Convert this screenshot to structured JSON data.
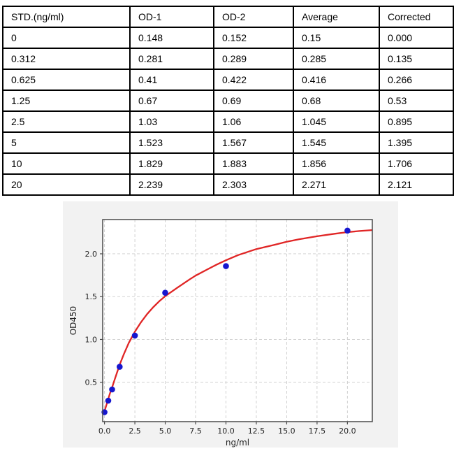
{
  "table": {
    "headers": [
      "STD.(ng/ml)",
      "OD-1",
      "OD-2",
      "Average",
      "Corrected"
    ],
    "rows": [
      [
        "0",
        "0.148",
        "0.152",
        "0.15",
        "0.000"
      ],
      [
        "0.312",
        "0.281",
        "0.289",
        "0.285",
        "0.135"
      ],
      [
        "0.625",
        "0.41",
        "0.422",
        "0.416",
        "0.266"
      ],
      [
        "1.25",
        "0.67",
        "0.69",
        "0.68",
        "0.53"
      ],
      [
        "2.5",
        "1.03",
        "1.06",
        "1.045",
        "0.895"
      ],
      [
        "5",
        "1.523",
        "1.567",
        "1.545",
        "1.395"
      ],
      [
        "10",
        "1.829",
        "1.883",
        "1.856",
        "1.706"
      ],
      [
        "20",
        "2.239",
        "2.303",
        "2.271",
        "2.121"
      ]
    ]
  },
  "chart_data": {
    "type": "scatter",
    "title": "",
    "xlabel": "ng/ml",
    "ylabel": "OD450",
    "xlim": [
      -0.15,
      22.05
    ],
    "ylim": [
      0.04,
      2.4
    ],
    "xticks": [
      0.0,
      2.5,
      5.0,
      7.5,
      10.0,
      12.5,
      15.0,
      17.5,
      20.0
    ],
    "xtick_labels": [
      "0.0",
      "2.5",
      "5.0",
      "7.5",
      "10.0",
      "12.5",
      "15.0",
      "17.5",
      "20.0"
    ],
    "yticks": [
      0.5,
      1.0,
      1.5,
      2.0
    ],
    "ytick_labels": [
      "0.5",
      "1.0",
      "1.5",
      "2.0"
    ],
    "grid": true,
    "legend": "none",
    "series": [
      {
        "name": "standard-points",
        "type": "scatter",
        "color": "#1616cf",
        "x": [
          0,
          0.312,
          0.625,
          1.25,
          2.5,
          5,
          10,
          20
        ],
        "y": [
          0.15,
          0.285,
          0.416,
          0.68,
          1.045,
          1.545,
          1.856,
          2.271
        ]
      },
      {
        "name": "fit-curve",
        "type": "line",
        "color": "#e02525",
        "x": [
          0,
          0.15,
          0.3,
          0.45,
          0.625,
          0.8,
          1.0,
          1.25,
          1.6,
          2.0,
          2.5,
          3.0,
          3.5,
          4.0,
          4.5,
          5.0,
          6.0,
          7.0,
          7.5,
          8.5,
          9.25,
          10.0,
          11.0,
          12.5,
          14.0,
          15.0,
          16.0,
          17.5,
          19.0,
          20.0,
          21.0,
          22.0
        ],
        "y": [
          0.16,
          0.23,
          0.3,
          0.37,
          0.44,
          0.515,
          0.6,
          0.705,
          0.83,
          0.96,
          1.09,
          1.2,
          1.295,
          1.375,
          1.445,
          1.505,
          1.605,
          1.7,
          1.745,
          1.82,
          1.875,
          1.925,
          1.985,
          2.055,
          2.105,
          2.14,
          2.17,
          2.205,
          2.235,
          2.253,
          2.266,
          2.277
        ]
      }
    ],
    "colors": {
      "figure_bg": "#f2f2f2",
      "plot_bg": "#ffffff",
      "grid": "#cccccc",
      "spine": "#4a4a4a",
      "tick_label": "#262626"
    }
  }
}
